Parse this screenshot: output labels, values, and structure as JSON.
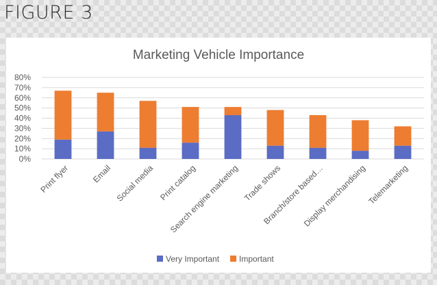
{
  "figure_label": "FIGURE 3",
  "chart_data": {
    "type": "bar",
    "stacked": true,
    "title": "Marketing Vehicle Importance",
    "xlabel": "",
    "ylabel": "",
    "categories": [
      "Print flyer",
      "Email",
      "Social media",
      "Print catalog",
      "Search engine marketing",
      "Trade shows",
      "Branch/store based…",
      "Display merchandising",
      "Telemarketing"
    ],
    "series": [
      {
        "name": "Very Important",
        "color": "#5a6cc4",
        "values": [
          19,
          27,
          11,
          16,
          43,
          13,
          11,
          8,
          13
        ]
      },
      {
        "name": "Important",
        "color": "#ed7d31",
        "values": [
          48,
          38,
          46,
          35,
          8,
          35,
          32,
          30,
          19
        ]
      }
    ],
    "ylim": [
      0,
      80
    ],
    "yticks": [
      "0%",
      "10%",
      "20%",
      "30%",
      "40%",
      "50%",
      "60%",
      "70%",
      "80%"
    ],
    "grid": true,
    "legend": "bottom"
  }
}
